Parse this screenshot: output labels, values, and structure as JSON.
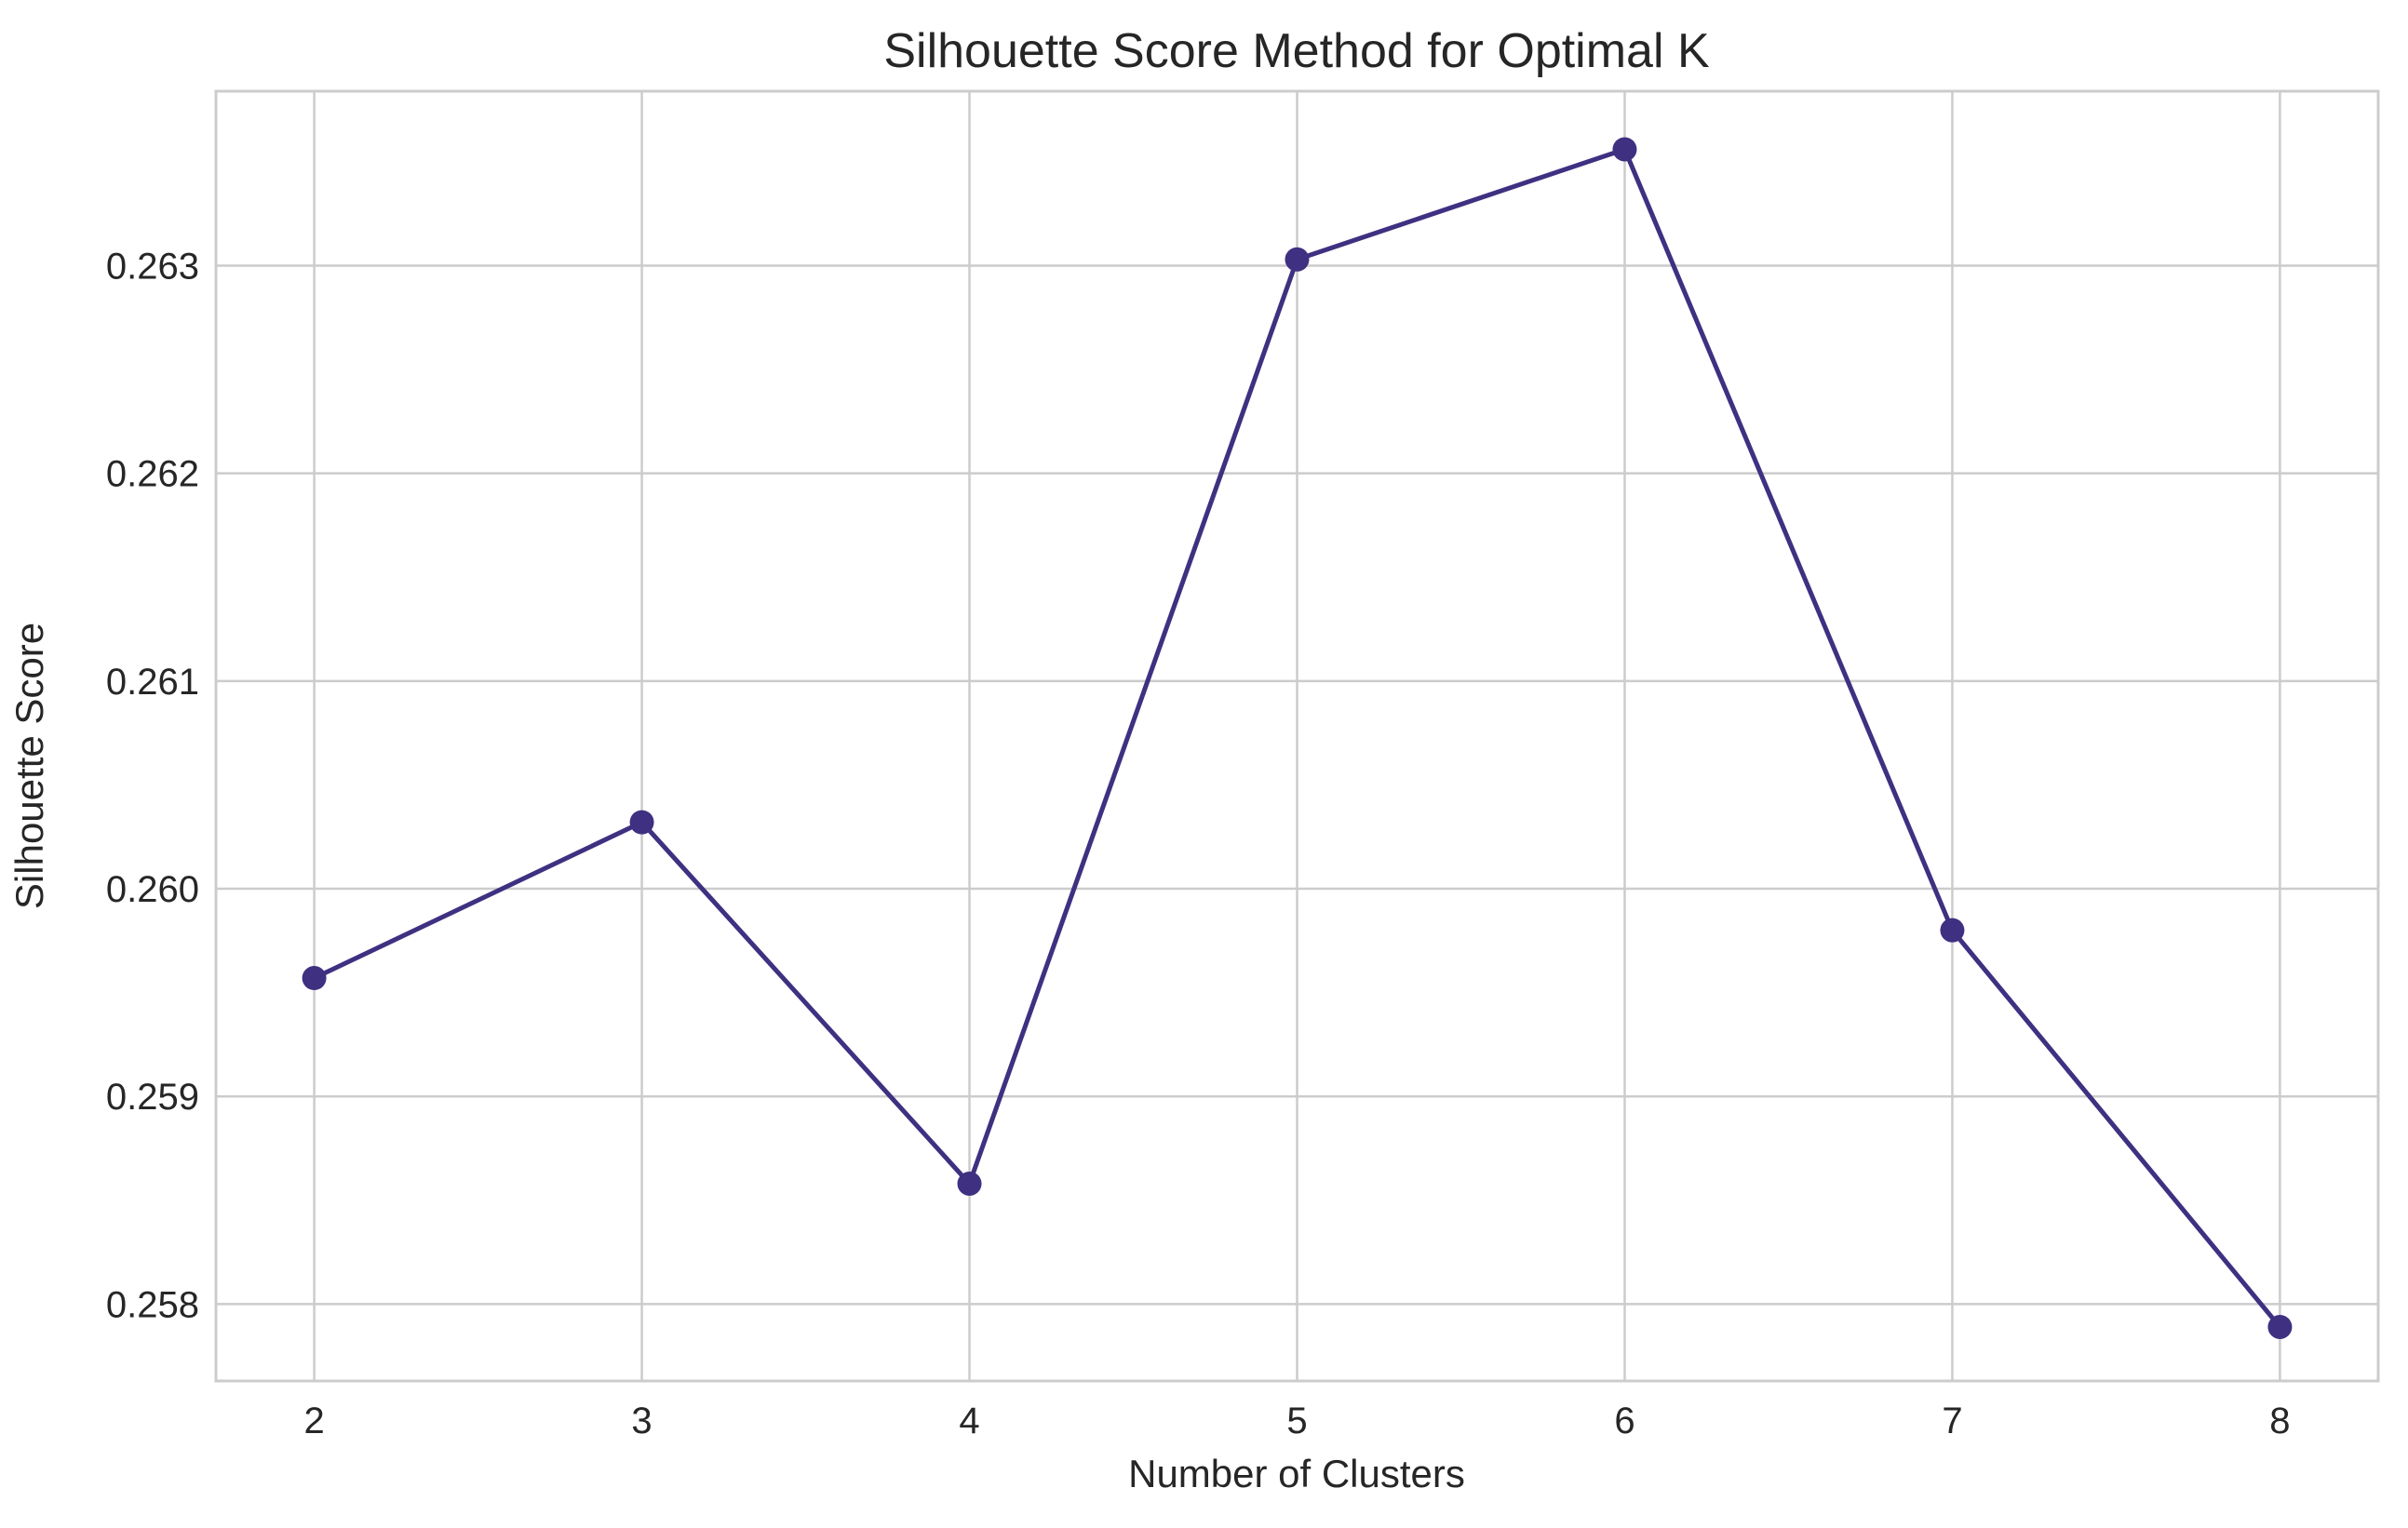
{
  "chart_data": {
    "type": "line",
    "title": "Silhouette Score Method for Optimal K",
    "xlabel": "Number of Clusters",
    "ylabel": "Silhouette Score",
    "x": [
      2,
      3,
      4,
      5,
      6,
      7,
      8
    ],
    "series": [
      {
        "values": [
          0.25957,
          0.26032,
          0.25858,
          0.26303,
          0.26356,
          0.2598,
          0.25789
        ],
        "color": "#3f3081",
        "marker": "circle"
      }
    ],
    "xticks": [
      "2",
      "3",
      "4",
      "5",
      "6",
      "7",
      "8"
    ],
    "yticks": [
      "0.258",
      "0.259",
      "0.260",
      "0.261",
      "0.262",
      "0.263"
    ],
    "xlim": [
      1.7,
      8.3
    ],
    "ylim": [
      0.25763,
      0.26384
    ],
    "grid": true,
    "legend": "none"
  }
}
